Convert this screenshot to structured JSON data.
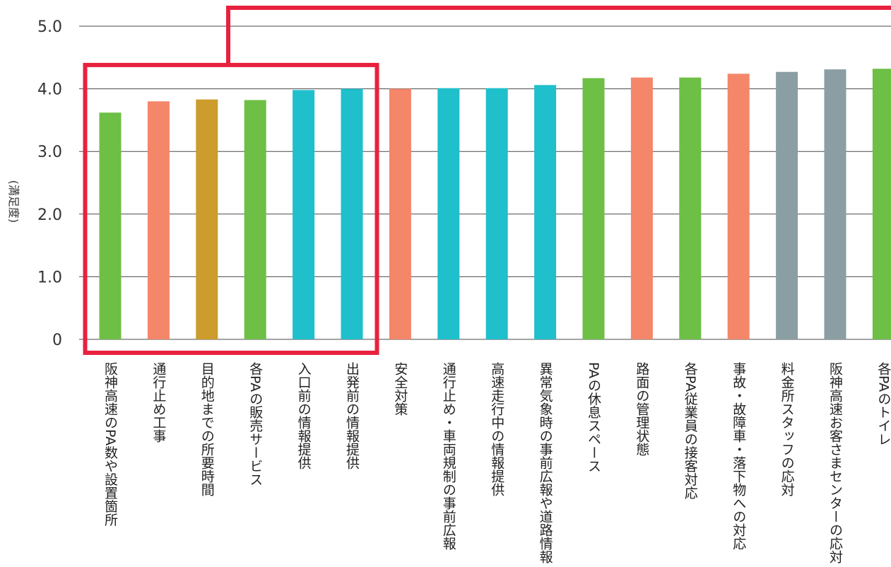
{
  "chart_data": {
    "type": "bar",
    "ylabel": "(満足度)",
    "ylim": [
      0,
      5.0
    ],
    "yticks": [
      "0",
      "1.0",
      "2.0",
      "3.0",
      "4.0",
      "5.0"
    ],
    "grid": true,
    "categories": [
      "阪神高速のPA数や設置箇所",
      "通行止め工事",
      "目的地までの所要時間",
      "各PAの販売サービス",
      "入口前の情報提供",
      "出発前の情報提供",
      "安全対策",
      "通行止め・車両規制の事前広報",
      "高速走行中の情報提供",
      "異常気象時の事前広報や道路情報",
      "PAの休息スペース",
      "路面の管理状態",
      "各PA従業員の接客対応",
      "事故・故障車・落下物への対応",
      "料金所スタッフの応対",
      "阪神高速お客さまセンターの応対",
      "各PAのトイレ"
    ],
    "values": [
      3.62,
      3.8,
      3.83,
      3.82,
      3.98,
      4.0,
      4.0,
      4.01,
      4.01,
      4.06,
      4.17,
      4.18,
      4.18,
      4.24,
      4.27,
      4.31,
      4.32
    ],
    "colors": [
      "#6dbf45",
      "#f4866a",
      "#cc9c2c",
      "#6dbf45",
      "#1fbfcc",
      "#1fbfcc",
      "#f4866a",
      "#1fbfcc",
      "#1fbfcc",
      "#1fbfcc",
      "#6dbf45",
      "#f4866a",
      "#6dbf45",
      "#f4866a",
      "#8a9ea3",
      "#8a9ea3",
      "#6dbf45"
    ],
    "highlight": {
      "color": "#e8213f",
      "from_index": 0,
      "to_index": 5
    }
  }
}
